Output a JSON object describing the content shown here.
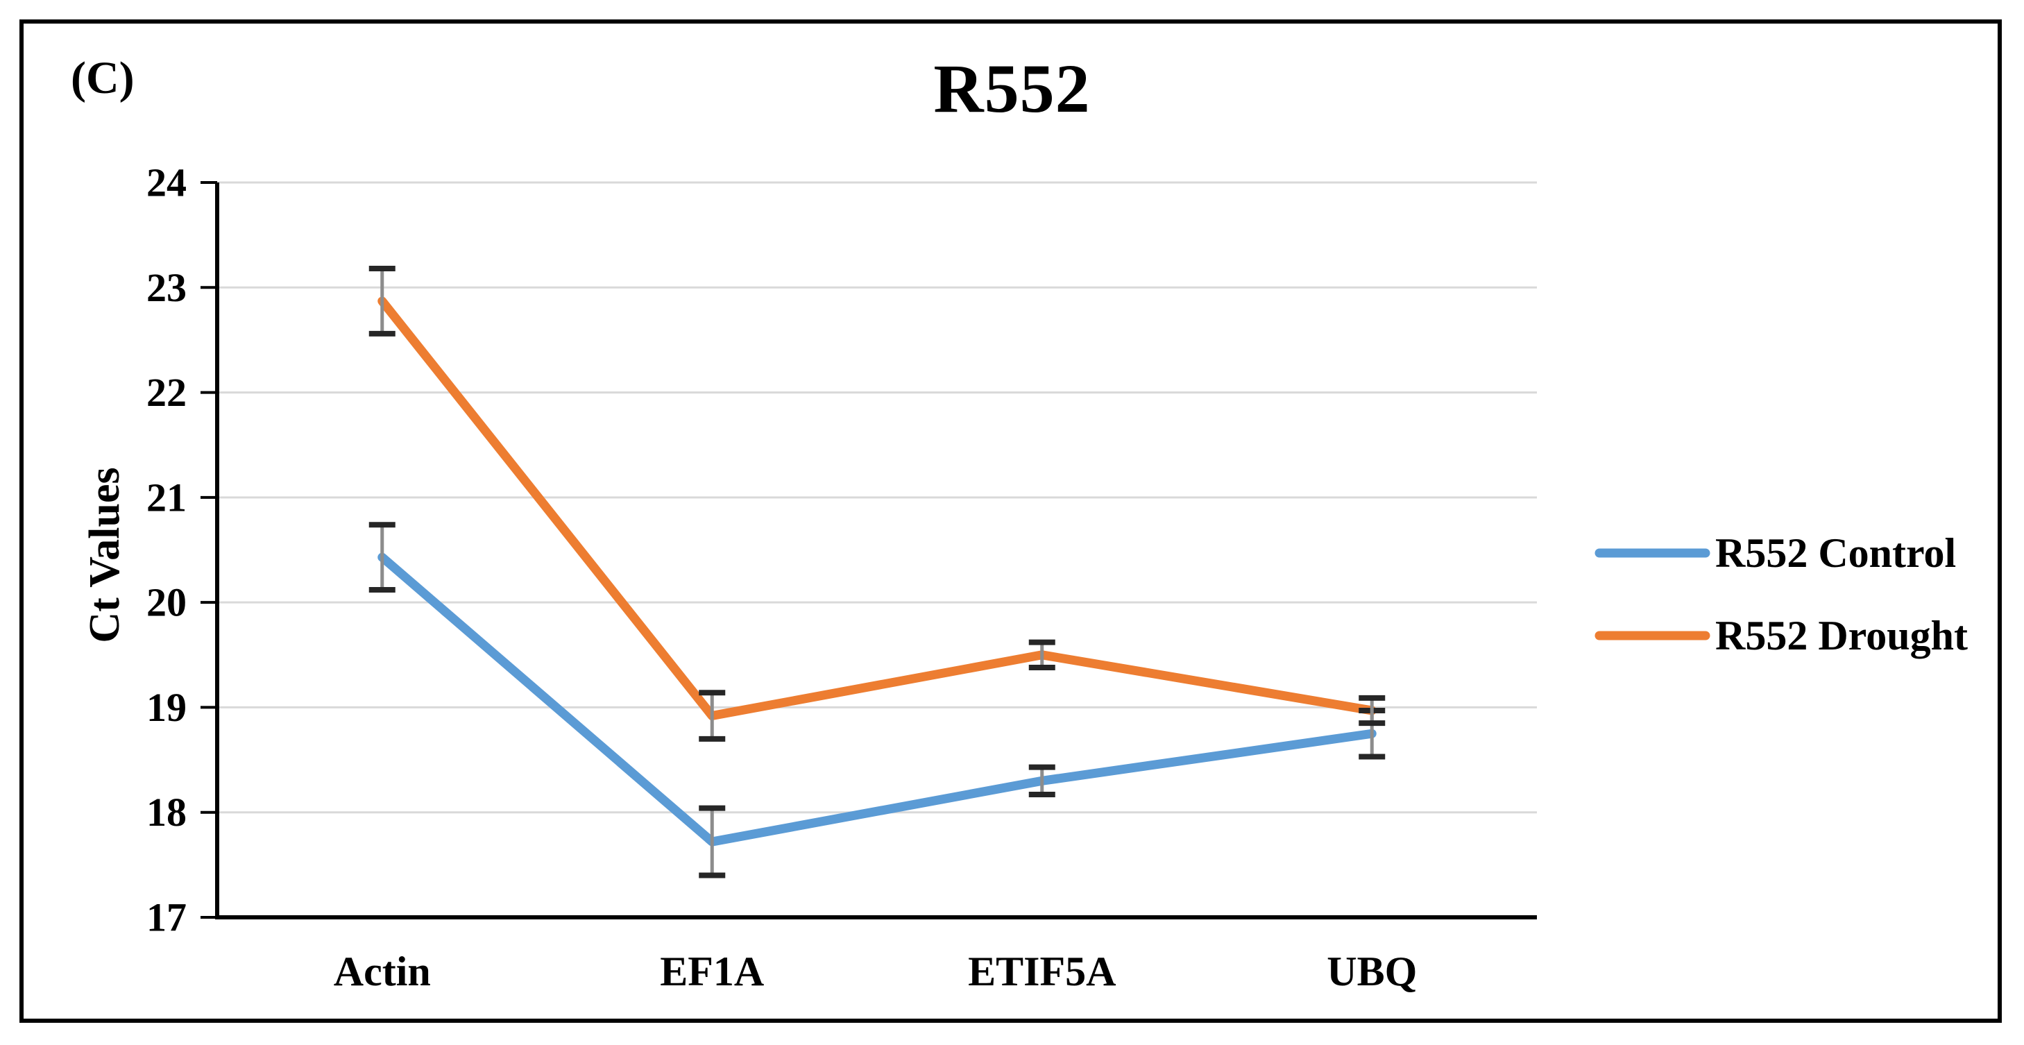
{
  "panel_label": "(C)",
  "chart_data": {
    "type": "line",
    "title": "R552",
    "xlabel": "",
    "ylabel": "Ct Values",
    "categories": [
      "Actin",
      "EF1A",
      "ETIF5A",
      "UBQ"
    ],
    "series": [
      {
        "name": "R552 Control",
        "color": "#5B9BD5",
        "values": [
          20.43,
          17.72,
          18.3,
          18.75
        ],
        "errors": [
          0.31,
          0.32,
          0.13,
          0.22
        ]
      },
      {
        "name": "R552 Drought",
        "color": "#ED7D31",
        "values": [
          22.87,
          18.92,
          19.5,
          18.97
        ],
        "errors": [
          0.31,
          0.22,
          0.12,
          0.12
        ]
      }
    ],
    "ylim": [
      17,
      24
    ],
    "ytick_step": 1,
    "ytick_labels": [
      "17",
      "18",
      "19",
      "20",
      "21",
      "22",
      "23",
      "24"
    ],
    "grid": true,
    "error_bars": true,
    "legend_position": "right",
    "colors": {
      "axis": "#000000",
      "gridline": "#D9D9D9",
      "error_bar_line": "#8C8C8C",
      "error_bar_cap": "#262626",
      "frame_border": "#000000",
      "background": "#FFFFFF"
    }
  }
}
